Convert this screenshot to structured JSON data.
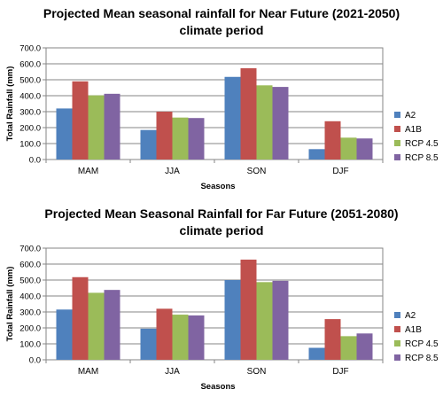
{
  "chart_data": [
    {
      "type": "bar",
      "title_line1": "Projected Mean seasonal rainfall for Near Future (2021-2050)",
      "title_line2": "climate period",
      "xlabel": "Seasons",
      "ylabel": "Total Rainfall (mm)",
      "ylim": [
        0,
        700
      ],
      "yticks": [
        "0.0",
        "100.0",
        "200.0",
        "300.0",
        "400.0",
        "500.0",
        "600.0",
        "700.0"
      ],
      "grid": true,
      "legend_position": "right",
      "categories": [
        "MAM",
        "JJA",
        "SON",
        "DJF"
      ],
      "series": [
        {
          "name": "A2",
          "color": "#4F81BD",
          "values": [
            320,
            185,
            518,
            65
          ]
        },
        {
          "name": "A1B",
          "color": "#C0504D",
          "values": [
            490,
            300,
            572,
            240
          ]
        },
        {
          "name": "RCP 4.5",
          "color": "#9BBB59",
          "values": [
            402,
            263,
            465,
            137
          ]
        },
        {
          "name": "RCP 8.5",
          "color": "#8064A2",
          "values": [
            412,
            260,
            455,
            132
          ]
        }
      ]
    },
    {
      "type": "bar",
      "title_line1": "Projected Mean Seasonal Rainfall for Far Future (2051-2080)",
      "title_line2": "climate period",
      "xlabel": "Seasons",
      "ylabel": "Total Rainfall (mm)",
      "ylim": [
        0,
        700
      ],
      "yticks": [
        "0.0",
        "100.0",
        "200.0",
        "300.0",
        "400.0",
        "500.0",
        "600.0",
        "700.0"
      ],
      "grid": true,
      "legend_position": "right",
      "categories": [
        "MAM",
        "JJA",
        "SON",
        "DJF"
      ],
      "series": [
        {
          "name": "A2",
          "color": "#4F81BD",
          "values": [
            315,
            195,
            500,
            75
          ]
        },
        {
          "name": "A1B",
          "color": "#C0504D",
          "values": [
            518,
            320,
            628,
            255
          ]
        },
        {
          "name": "RCP 4.5",
          "color": "#9BBB59",
          "values": [
            420,
            283,
            487,
            148
          ]
        },
        {
          "name": "RCP 8.5",
          "color": "#8064A2",
          "values": [
            438,
            278,
            495,
            165
          ]
        }
      ]
    }
  ]
}
